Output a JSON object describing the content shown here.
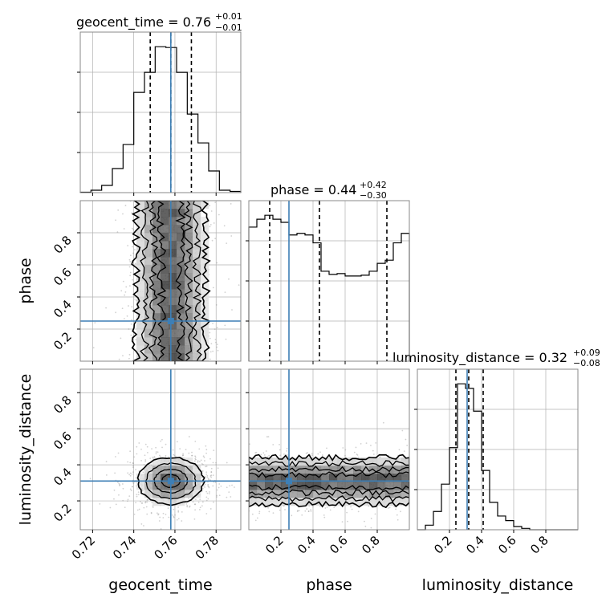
{
  "chart_data": {
    "type": "corner",
    "parameters": [
      "geocent_time",
      "phase",
      "luminosity_distance"
    ],
    "truths": {
      "geocent_time": 0.758,
      "phase": 0.25,
      "luminosity_distance": 0.31
    },
    "truth_color": "#3d7fb6",
    "grid": true,
    "panels": [
      {
        "id": "hist-geocent_time",
        "type": "histogram",
        "parameter": "geocent_time",
        "title_label": "geocent_time = 0.76",
        "title_plus": "+0.01",
        "title_minus": "−0.01",
        "xlim": [
          0.714,
          0.792
        ],
        "bin_edges": [
          0.714,
          0.7192,
          0.7244,
          0.7296,
          0.7348,
          0.74,
          0.7452,
          0.7504,
          0.7556,
          0.7608,
          0.766,
          0.7712,
          0.7764,
          0.7816,
          0.7868,
          0.792
        ],
        "values": [
          0.5,
          3,
          9,
          30,
          60,
          125,
          150,
          182,
          181,
          150,
          98,
          62,
          27,
          3,
          1.5
        ],
        "quantiles": [
          0.748,
          0.758,
          0.768
        ]
      },
      {
        "id": "hist-phase",
        "type": "histogram",
        "parameter": "phase",
        "title_label": "phase = 0.44",
        "title_plus": "+0.42",
        "title_minus": "−0.30",
        "xlim": [
          0.0,
          1.0
        ],
        "bin_edges": [
          0,
          0.05,
          0.1,
          0.15,
          0.2,
          0.25,
          0.3,
          0.35,
          0.4,
          0.45,
          0.5,
          0.55,
          0.6,
          0.65,
          0.7,
          0.75,
          0.8,
          0.85,
          0.9,
          0.95,
          1.0
        ],
        "values": [
          170,
          180,
          185,
          180,
          176,
          160,
          162,
          160,
          150,
          114,
          110,
          111,
          108,
          108,
          109,
          114,
          124,
          128,
          150,
          162
        ],
        "quantiles": [
          0.13,
          0.44,
          0.86
        ]
      },
      {
        "id": "hist-luminosity_distance",
        "type": "histogram",
        "parameter": "luminosity_distance",
        "title_label": "luminosity_distance = 0.32",
        "title_plus": "+0.09",
        "title_minus": "−0.08",
        "xlim": [
          0.0,
          1.0
        ],
        "bin_edges": [
          0.0,
          0.05,
          0.1,
          0.15,
          0.2,
          0.25,
          0.3,
          0.35,
          0.4,
          0.45,
          0.5,
          0.55,
          0.6,
          0.65,
          0.7,
          0.75,
          0.8,
          0.85,
          0.9,
          0.95,
          1.0
        ],
        "values": [
          0,
          1,
          4,
          10,
          18,
          32,
          31,
          26,
          13,
          6,
          3,
          2,
          0.7,
          0.3,
          0,
          0,
          0,
          0,
          0,
          0
        ],
        "quantiles": [
          0.24,
          0.32,
          0.41
        ]
      },
      {
        "id": "scatter-geocent_time-phase",
        "type": "scatter-density",
        "x": "geocent_time",
        "y": "phase",
        "xlim": [
          0.714,
          0.792
        ],
        "ylim": [
          0.0,
          1.0
        ],
        "center": [
          0.758,
          0.5
        ],
        "sd": [
          0.0085,
          0.6
        ],
        "bounded_y": [
          0.0,
          1.0
        ]
      },
      {
        "id": "scatter-geocent_time-luminosity_distance",
        "type": "scatter-density",
        "x": "geocent_time",
        "y": "luminosity_distance",
        "xlim": [
          0.714,
          0.792
        ],
        "ylim": [
          0.04,
          0.93
        ],
        "center": [
          0.758,
          0.31
        ],
        "sd": [
          0.008,
          0.065
        ]
      },
      {
        "id": "scatter-phase-luminosity_distance",
        "type": "scatter-density",
        "x": "phase",
        "y": "luminosity_distance",
        "xlim": [
          0.0,
          1.0
        ],
        "ylim": [
          0.04,
          0.93
        ],
        "center": [
          0.5,
          0.31
        ],
        "sd": [
          0.6,
          0.065
        ],
        "bounded_x": [
          0.0,
          1.0
        ]
      }
    ],
    "axes": {
      "geocent_time": {
        "ticks": [
          "0.72",
          "0.74",
          "0.76",
          "0.78"
        ],
        "tick_values": [
          0.72,
          0.74,
          0.76,
          0.78
        ],
        "label": "geocent_time"
      },
      "phase": {
        "ticks": [
          "0.2",
          "0.4",
          "0.6",
          "0.8"
        ],
        "tick_values": [
          0.2,
          0.4,
          0.6,
          0.8
        ],
        "label": "phase"
      },
      "luminosity_distance": {
        "ticks": [
          "0.2",
          "0.4",
          "0.6",
          "0.8"
        ],
        "tick_values": [
          0.2,
          0.4,
          0.6,
          0.8
        ],
        "label": "luminosity_distance"
      }
    }
  }
}
